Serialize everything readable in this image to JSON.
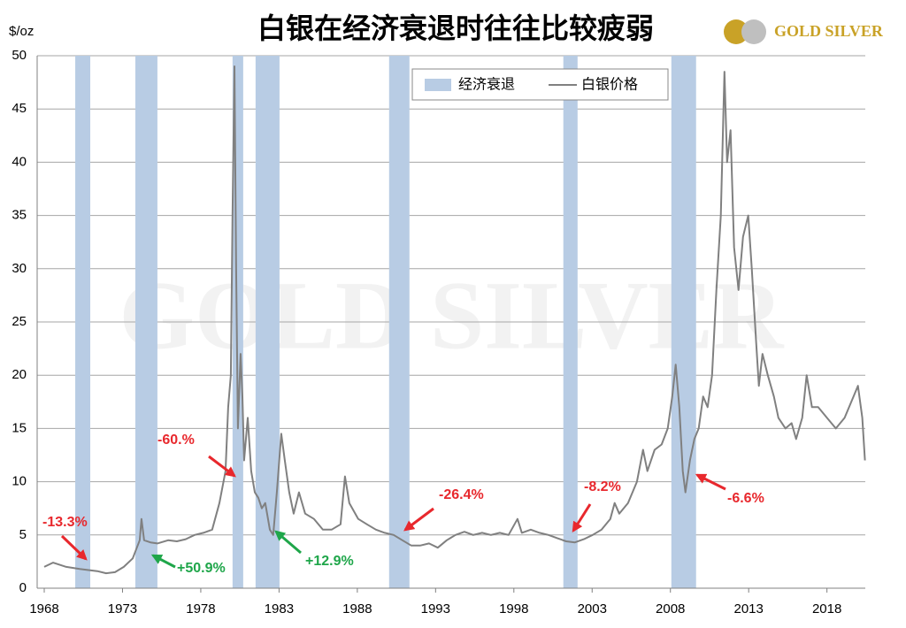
{
  "chart_data": {
    "type": "line",
    "title": "白银在经济衰退时往往比较疲弱",
    "y_unit": "$/oz",
    "logo": "GOLD SILVER",
    "watermark": "GOLD SILVER",
    "xlim": [
      1968,
      2020.45
    ],
    "xticks": [
      1968,
      1973,
      1978,
      1983,
      1988,
      1993,
      1998,
      2003,
      2008,
      2013,
      2018
    ],
    "ylim": [
      0,
      50
    ],
    "yticks": [
      0,
      5,
      10,
      15,
      20,
      25,
      30,
      35,
      40,
      45,
      50
    ],
    "grid": true,
    "legend": "top",
    "recessions": {
      "name": "经济衰退",
      "color": "#b8cce4",
      "spans": [
        [
          1969.98,
          1970.94
        ],
        [
          1973.82,
          1975.23
        ],
        [
          1980.03,
          1980.71
        ],
        [
          1981.5,
          1983.03
        ],
        [
          1990.03,
          1991.33
        ],
        [
          2001.16,
          2002.07
        ],
        [
          2008.06,
          2009.64
        ]
      ]
    },
    "series": [
      {
        "name": "白银价格",
        "color": "#808080",
        "x": [
          1968,
          1968.56,
          1969.41,
          1970.26,
          1970.82,
          1971.39,
          1971.95,
          1972.52,
          1973.08,
          1973.65,
          1974.1,
          1974.21,
          1974.38,
          1974.78,
          1975.23,
          1975.91,
          1976.47,
          1977.04,
          1977.6,
          1978.17,
          1978.73,
          1979.19,
          1979.58,
          1979.75,
          1979.92,
          1980.03,
          1980.15,
          1980.26,
          1980.37,
          1980.54,
          1980.66,
          1980.77,
          1981.0,
          1981.22,
          1981.45,
          1981.67,
          1981.9,
          1982.12,
          1982.41,
          1982.63,
          1982.86,
          1983.14,
          1983.37,
          1983.65,
          1983.93,
          1984.27,
          1984.67,
          1985.23,
          1985.8,
          1986.36,
          1986.93,
          1987.21,
          1987.49,
          1988.06,
          1988.62,
          1989.19,
          1989.75,
          1990.32,
          1990.88,
          1991.45,
          1992.01,
          1992.58,
          1993.14,
          1993.71,
          1994.27,
          1994.84,
          1995.4,
          1995.97,
          1996.53,
          1997.1,
          1997.66,
          1998.23,
          1998.51,
          1999.08,
          1999.64,
          2000.21,
          2000.77,
          2001.34,
          2001.9,
          2002.47,
          2003.03,
          2003.6,
          2004.16,
          2004.44,
          2004.73,
          2005.29,
          2005.86,
          2006.25,
          2006.53,
          2006.99,
          2007.44,
          2007.83,
          2008.12,
          2008.34,
          2008.57,
          2008.79,
          2008.96,
          2009.25,
          2009.53,
          2009.81,
          2010.09,
          2010.38,
          2010.66,
          2010.94,
          2011.22,
          2011.45,
          2011.62,
          2011.84,
          2012.07,
          2012.35,
          2012.64,
          2012.97,
          2013.2,
          2013.48,
          2013.65,
          2013.88,
          2014.22,
          2014.61,
          2014.9,
          2015.35,
          2015.74,
          2016.03,
          2016.42,
          2016.7,
          2017.04,
          2017.44,
          2018.0,
          2018.57,
          2019.13,
          2019.7,
          2019.98,
          2020.26,
          2020.43
        ],
        "values": [
          2,
          2.4,
          2.0,
          1.8,
          1.7,
          1.6,
          1.4,
          1.5,
          2.0,
          2.8,
          4.5,
          6.5,
          4.5,
          4.3,
          4.2,
          4.5,
          4.4,
          4.6,
          5.0,
          5.2,
          5.5,
          8.0,
          11,
          17,
          20,
          35,
          49,
          30,
          15,
          22,
          18,
          12,
          16,
          11,
          9,
          8.5,
          7.5,
          8,
          5.5,
          5,
          9,
          14.5,
          12,
          9,
          7,
          9,
          7,
          6.5,
          5.5,
          5.5,
          6,
          10.5,
          8,
          6.5,
          6,
          5.5,
          5.2,
          5,
          4.5,
          4,
          4,
          4.2,
          3.8,
          4.5,
          5,
          5.3,
          5,
          5.2,
          5,
          5.2,
          5,
          6.5,
          5.2,
          5.5,
          5.2,
          5,
          4.7,
          4.4,
          4.3,
          4.6,
          5,
          5.5,
          6.5,
          8,
          7,
          8,
          10,
          13,
          11,
          13,
          13.5,
          15,
          18,
          21,
          17,
          11,
          9,
          12,
          14,
          15,
          18,
          17,
          20,
          28,
          35,
          48.5,
          40,
          43,
          32,
          28,
          33,
          35,
          30,
          23,
          19,
          22,
          20,
          18,
          16,
          15,
          15.5,
          14,
          16,
          20,
          17,
          17,
          16,
          15,
          16,
          18,
          19,
          16,
          12
        ]
      }
    ],
    "annotations": [
      {
        "text": "-13.3%",
        "color": "#e8282d"
      },
      {
        "text": "+50.9%",
        "color": "#1fa64a"
      },
      {
        "text": "-60.%",
        "color": "#e8282d"
      },
      {
        "text": "+12.9%",
        "color": "#1fa64a"
      },
      {
        "text": "-26.4%",
        "color": "#e8282d"
      },
      {
        "text": "-8.2%",
        "color": "#e8282d"
      },
      {
        "text": "-6.6%",
        "color": "#e8282d"
      }
    ]
  }
}
